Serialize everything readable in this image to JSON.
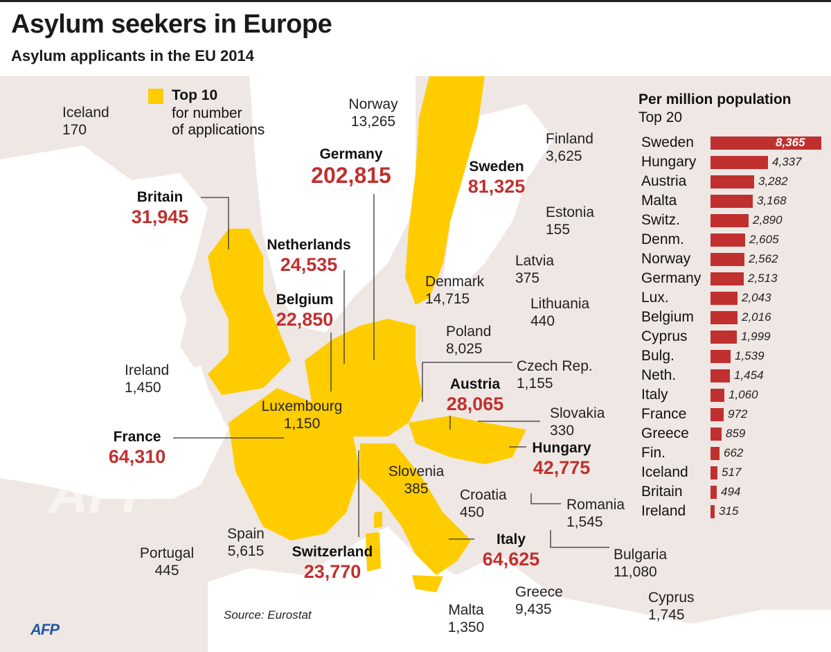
{
  "title": "Asylum seekers in Europe",
  "subtitle": "Asylum applicants in the EU 2014",
  "legend": {
    "line1": "Top 10",
    "line2": "for number",
    "line3": "of applications",
    "color": "#ffcc00"
  },
  "colors": {
    "top10": "#ffcc00",
    "land": "#efe7e3",
    "sea": "#ffffff",
    "bar": "#c0302e",
    "value": "#c0302e"
  },
  "top10": [
    {
      "name": "Germany",
      "value": "202,815"
    },
    {
      "name": "Sweden",
      "value": "81,325"
    },
    {
      "name": "Britain",
      "value": "31,945"
    },
    {
      "name": "Netherlands",
      "value": "24,535"
    },
    {
      "name": "Belgium",
      "value": "22,850"
    },
    {
      "name": "Austria",
      "value": "28,065"
    },
    {
      "name": "France",
      "value": "64,310"
    },
    {
      "name": "Hungary",
      "value": "42,775"
    },
    {
      "name": "Italy",
      "value": "64,625"
    },
    {
      "name": "Switzerland",
      "value": "23,770"
    }
  ],
  "others": [
    {
      "name": "Iceland",
      "value": "170"
    },
    {
      "name": "Norway",
      "value": "13,265"
    },
    {
      "name": "Finland",
      "value": "3,625"
    },
    {
      "name": "Estonia",
      "value": "155"
    },
    {
      "name": "Latvia",
      "value": "375"
    },
    {
      "name": "Denmark",
      "value": "14,715"
    },
    {
      "name": "Lithuania",
      "value": "440"
    },
    {
      "name": "Poland",
      "value": "8,025"
    },
    {
      "name": "Czech Rep.",
      "value": "1,155"
    },
    {
      "name": "Ireland",
      "value": "1,450"
    },
    {
      "name": "Luxembourg",
      "value": "1,150"
    },
    {
      "name": "Slovakia",
      "value": "330"
    },
    {
      "name": "Slovenia",
      "value": "385"
    },
    {
      "name": "Croatia",
      "value": "450"
    },
    {
      "name": "Romania",
      "value": "1,545"
    },
    {
      "name": "Spain",
      "value": "5,615"
    },
    {
      "name": "Portugal",
      "value": "445"
    },
    {
      "name": "Bulgaria",
      "value": "11,080"
    },
    {
      "name": "Greece",
      "value": "9,435"
    },
    {
      "name": "Malta",
      "value": "1,350"
    },
    {
      "name": "Cyprus",
      "value": "1,745"
    }
  ],
  "per_million": {
    "title": "Per million population",
    "subtitle": "Top 20",
    "rows": [
      {
        "name": "Sweden",
        "value": 8365,
        "label": "8,365"
      },
      {
        "name": "Hungary",
        "value": 4337,
        "label": "4,337"
      },
      {
        "name": "Austria",
        "value": 3282,
        "label": "3,282"
      },
      {
        "name": "Malta",
        "value": 3168,
        "label": "3,168"
      },
      {
        "name": "Switz.",
        "value": 2890,
        "label": "2,890"
      },
      {
        "name": "Denm.",
        "value": 2605,
        "label": "2,605"
      },
      {
        "name": "Norway",
        "value": 2562,
        "label": "2,562"
      },
      {
        "name": "Germany",
        "value": 2513,
        "label": "2,513"
      },
      {
        "name": "Lux.",
        "value": 2043,
        "label": "2,043"
      },
      {
        "name": "Belgium",
        "value": 2016,
        "label": "2,016"
      },
      {
        "name": "Cyprus",
        "value": 1999,
        "label": "1,999"
      },
      {
        "name": "Bulg.",
        "value": 1539,
        "label": "1,539"
      },
      {
        "name": "Neth.",
        "value": 1454,
        "label": "1,454"
      },
      {
        "name": "Italy",
        "value": 1060,
        "label": "1,060"
      },
      {
        "name": "France",
        "value": 972,
        "label": "972"
      },
      {
        "name": "Greece",
        "value": 859,
        "label": "859"
      },
      {
        "name": "Fin.",
        "value": 662,
        "label": "662"
      },
      {
        "name": "Iceland",
        "value": 517,
        "label": "517"
      },
      {
        "name": "Britain",
        "value": 494,
        "label": "494"
      },
      {
        "name": "Ireland",
        "value": 315,
        "label": "315"
      }
    ]
  },
  "source": "Source: Eurostat",
  "logo": "AFP"
}
